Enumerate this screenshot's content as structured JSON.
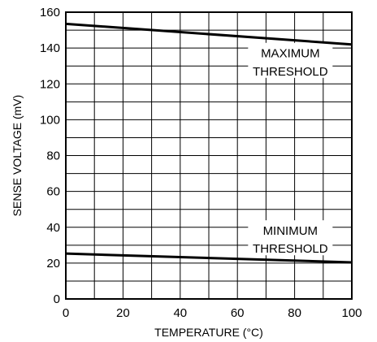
{
  "chart_data": {
    "type": "line",
    "title": "",
    "xlabel": "TEMPERATURE (°C)",
    "ylabel": "SENSE VOLTAGE (mV)",
    "xlim": [
      0,
      100
    ],
    "ylim": [
      0,
      160
    ],
    "x_major_ticks": [
      0,
      20,
      40,
      60,
      80,
      100
    ],
    "x_minor_step": 10,
    "y_major_ticks": [
      0,
      20,
      40,
      60,
      80,
      100,
      120,
      140,
      160
    ],
    "y_minor_step": 10,
    "grid": true,
    "legend": "none",
    "series": [
      {
        "x": [
          0,
          100
        ],
        "y": [
          153.5,
          142
        ],
        "color": "#000000"
      },
      {
        "x": [
          0,
          100
        ],
        "y": [
          25.3,
          20.4
        ],
        "color": "#000000"
      }
    ],
    "annotations": [
      {
        "lines": [
          "MAXIMUM",
          "THRESHOLD"
        ],
        "x": 78.5,
        "y": [
          137,
          127
        ]
      },
      {
        "lines": [
          "MINIMUM",
          "THRESHOLD"
        ],
        "x": 78.5,
        "y": [
          38,
          28
        ]
      }
    ]
  }
}
